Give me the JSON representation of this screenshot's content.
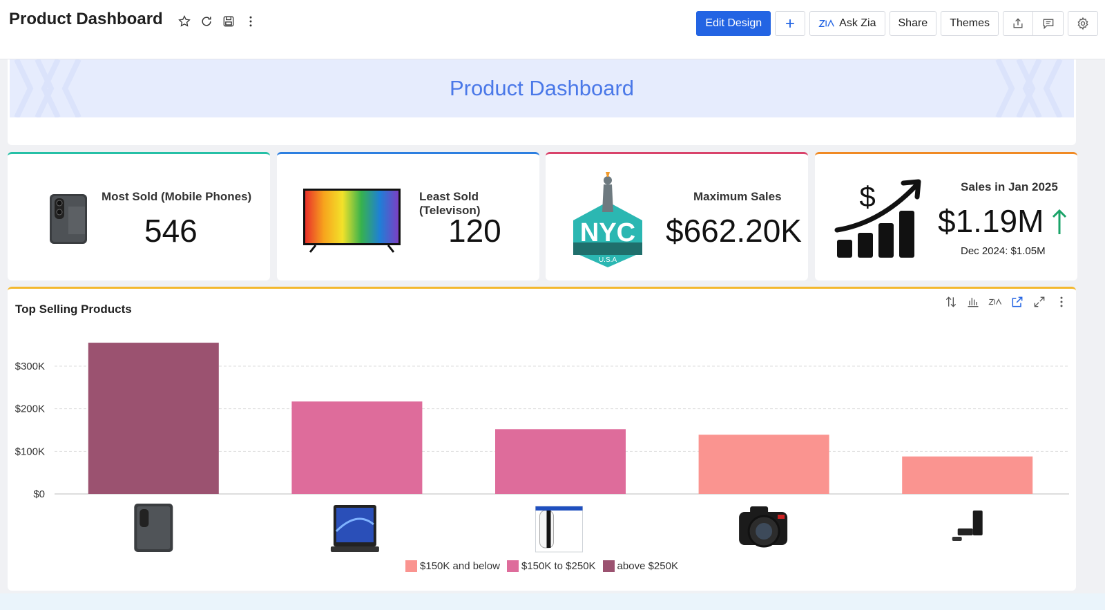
{
  "app": {
    "title": "Product Dashboard"
  },
  "toolbar": {
    "edit_design": "Edit Design",
    "add": "+",
    "ask_zia": "Ask Zia",
    "share": "Share",
    "themes": "Themes"
  },
  "banner": {
    "title": "Product Dashboard"
  },
  "kpis": [
    {
      "label": "Most Sold (Mobile Phones)",
      "value": "546",
      "accent": "#26c0a6"
    },
    {
      "label": "Least Sold (Televison)",
      "value": "120",
      "accent": "#2d7fe0"
    },
    {
      "label": "Maximum Sales",
      "value": "$662.20K",
      "accent": "#d9436b",
      "badge_text": "NYC",
      "badge_sub": "U.S.A"
    },
    {
      "label": "Sales in Jan 2025",
      "value": "$1.19M",
      "sub": "Dec 2024: $1.05M",
      "accent": "#f08a24",
      "trend_color": "#1aa368"
    }
  ],
  "chart": {
    "title": "Top Selling Products"
  },
  "chart_data": {
    "type": "bar",
    "title": "Top Selling Products",
    "categories": [
      "Mobile Phone",
      "Laptop",
      "Game Console",
      "Camera",
      "Soundbar"
    ],
    "values": [
      355000,
      217000,
      152000,
      139000,
      88000
    ],
    "bar_colors": [
      "#9b5270",
      "#de6c9b",
      "#de6c9b",
      "#fa9490",
      "#fa9490"
    ],
    "y_ticks": [
      "$0",
      "$100K",
      "$200K",
      "$300K"
    ],
    "y_tick_values": [
      0,
      100000,
      200000,
      300000
    ],
    "ylim": [
      0,
      360000
    ],
    "grid": true,
    "legend_position": "bottom",
    "legend": [
      {
        "label": "$150K and below",
        "color": "#fa9490"
      },
      {
        "label": "$150K to $250K",
        "color": "#de6c9b"
      },
      {
        "label": "above $250K",
        "color": "#9b5270"
      }
    ]
  },
  "colors": {
    "primary": "#2364e3",
    "banner_bg": "#e6ecfd",
    "banner_text": "#4a78e8",
    "chart_accent": "#f3b82e"
  }
}
